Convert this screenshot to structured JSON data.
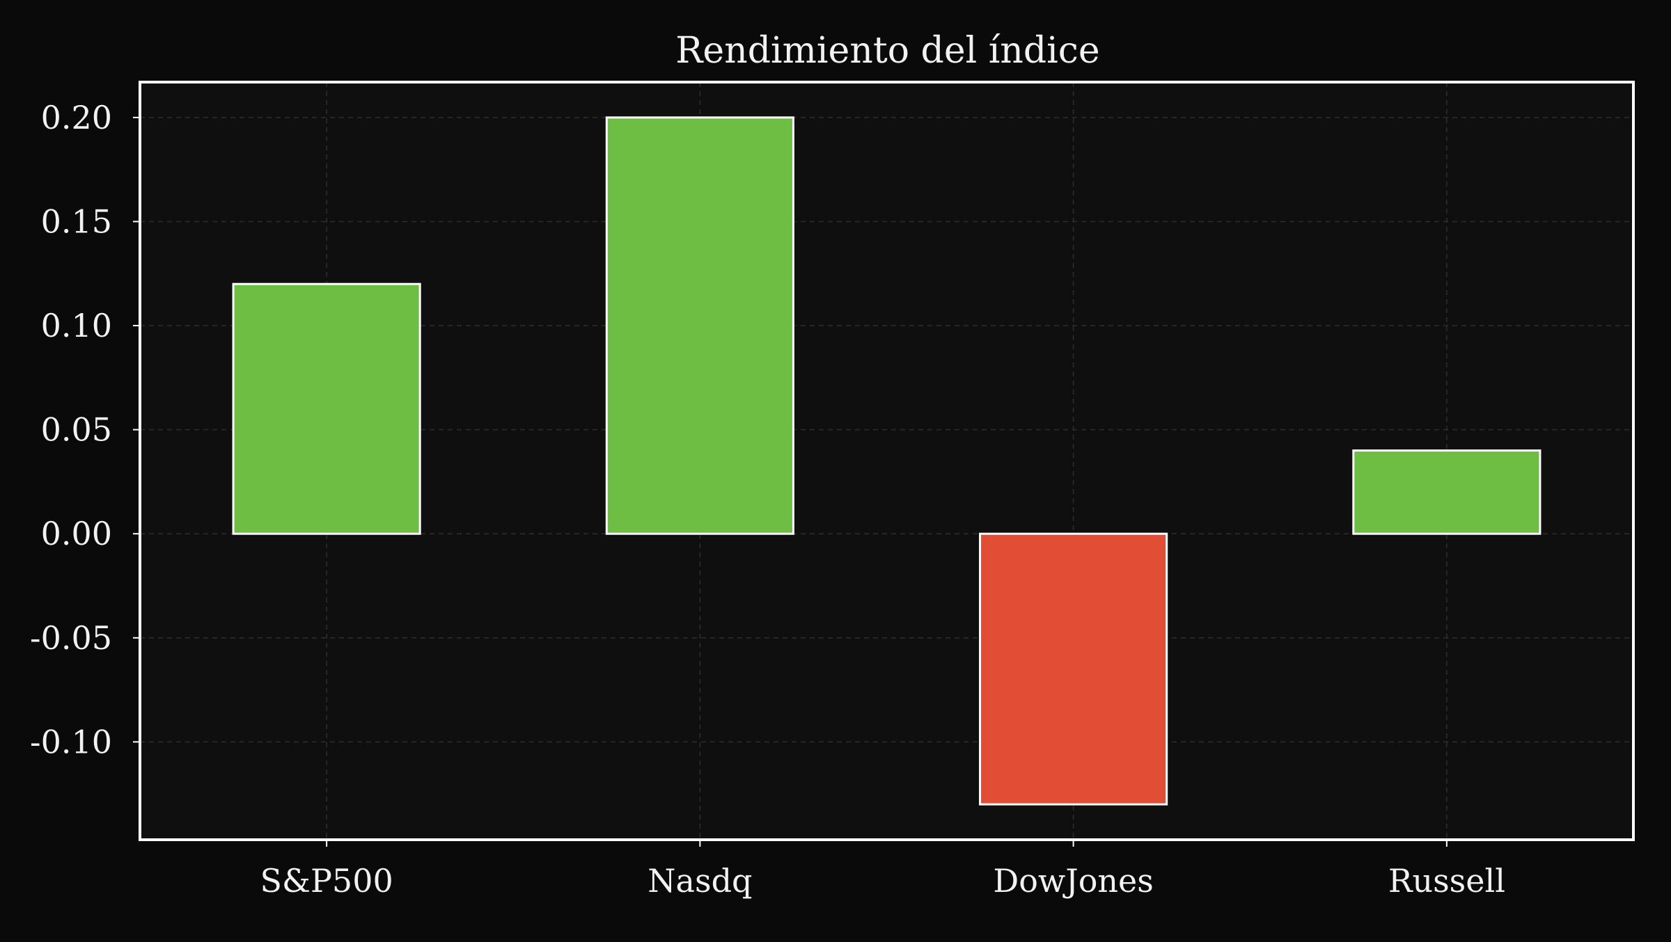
{
  "chart_data": {
    "type": "bar",
    "title": "Rendimiento del índice",
    "xlabel": "",
    "ylabel": "",
    "categories": [
      "S&P500",
      "Nasdq",
      "DowJones",
      "Russell"
    ],
    "values": [
      0.12,
      0.2,
      -0.13,
      0.04
    ],
    "ylim": [
      -0.147,
      0.217
    ],
    "yticks": [
      0.2,
      0.15,
      0.1,
      0.05,
      0.0,
      -0.05,
      -0.1
    ],
    "ytick_labels": [
      "0.20",
      "0.15",
      "0.10",
      "0.05",
      "0.00",
      "-0.05",
      "-0.10"
    ],
    "grid": true,
    "legend": "none"
  },
  "colors": {
    "background": "#0a0a0a",
    "plot_background": "#0f0f0f",
    "positive": "#6fbe44",
    "negative": "#e14d35",
    "bar_edge": "#ffffff",
    "grid": "#2e2e2e",
    "axes": "#ffffff",
    "text": "#f2f2f2"
  }
}
